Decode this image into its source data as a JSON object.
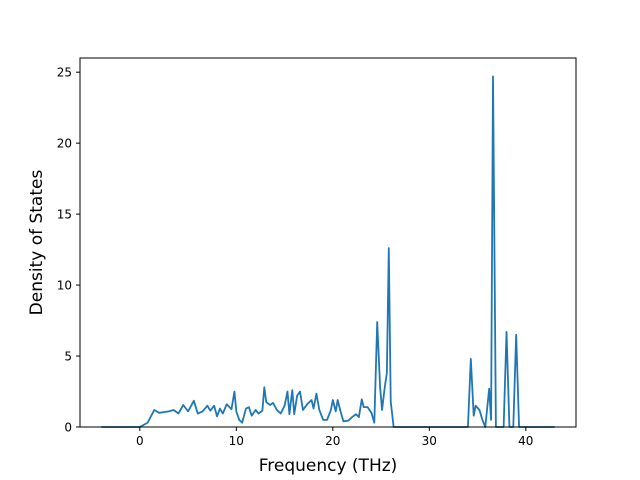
{
  "chart_data": {
    "type": "line",
    "title": "",
    "xlabel": "Frequency (THz)",
    "ylabel": "Density of States",
    "xlim": [
      -6.2,
      45.2
    ],
    "ylim": [
      0,
      26
    ],
    "xticks": [
      0,
      10,
      20,
      30,
      40
    ],
    "yticks": [
      0,
      5,
      10,
      15,
      20,
      25
    ],
    "grid": false,
    "legend": "none",
    "series": [
      {
        "color": "#1f77b4",
        "points": [
          [
            -4.0,
            0
          ],
          [
            0.0,
            0
          ],
          [
            0.8,
            0.3
          ],
          [
            1.5,
            1.2
          ],
          [
            2.0,
            1.0
          ],
          [
            2.5,
            1.05
          ],
          [
            3.0,
            1.1
          ],
          [
            3.5,
            1.2
          ],
          [
            4.0,
            0.95
          ],
          [
            4.5,
            1.55
          ],
          [
            5.0,
            1.1
          ],
          [
            5.6,
            1.85
          ],
          [
            6.0,
            0.95
          ],
          [
            6.5,
            1.1
          ],
          [
            7.0,
            1.5
          ],
          [
            7.3,
            1.15
          ],
          [
            7.7,
            1.5
          ],
          [
            8.0,
            0.75
          ],
          [
            8.3,
            1.3
          ],
          [
            8.6,
            0.95
          ],
          [
            9.0,
            1.6
          ],
          [
            9.5,
            1.25
          ],
          [
            9.8,
            2.5
          ],
          [
            10.0,
            1.1
          ],
          [
            10.3,
            0.5
          ],
          [
            10.6,
            0.3
          ],
          [
            11.0,
            1.3
          ],
          [
            11.3,
            1.4
          ],
          [
            11.6,
            0.8
          ],
          [
            12.0,
            1.2
          ],
          [
            12.3,
            0.95
          ],
          [
            12.7,
            1.15
          ],
          [
            12.9,
            2.8
          ],
          [
            13.1,
            1.75
          ],
          [
            13.5,
            1.55
          ],
          [
            13.8,
            1.7
          ],
          [
            14.2,
            1.2
          ],
          [
            14.6,
            0.95
          ],
          [
            15.0,
            1.5
          ],
          [
            15.3,
            2.5
          ],
          [
            15.5,
            0.9
          ],
          [
            15.8,
            2.6
          ],
          [
            16.0,
            0.9
          ],
          [
            16.3,
            2.2
          ],
          [
            16.6,
            2.5
          ],
          [
            16.9,
            1.2
          ],
          [
            17.4,
            1.65
          ],
          [
            17.8,
            1.9
          ],
          [
            18.0,
            1.3
          ],
          [
            18.3,
            2.35
          ],
          [
            18.6,
            1.2
          ],
          [
            19.0,
            0.5
          ],
          [
            19.4,
            0.5
          ],
          [
            19.8,
            1.2
          ],
          [
            20.0,
            1.9
          ],
          [
            20.3,
            1.1
          ],
          [
            20.5,
            1.9
          ],
          [
            20.8,
            1.1
          ],
          [
            21.1,
            0.4
          ],
          [
            21.6,
            0.45
          ],
          [
            22.0,
            0.7
          ],
          [
            22.4,
            0.9
          ],
          [
            22.7,
            0.7
          ],
          [
            23.0,
            1.95
          ],
          [
            23.2,
            1.4
          ],
          [
            23.6,
            1.4
          ],
          [
            24.0,
            1.0
          ],
          [
            24.3,
            0.3
          ],
          [
            24.6,
            7.4
          ],
          [
            24.9,
            2.8
          ],
          [
            25.1,
            1.2
          ],
          [
            25.4,
            2.9
          ],
          [
            25.6,
            3.8
          ],
          [
            25.8,
            12.6
          ],
          [
            26.0,
            1.8
          ],
          [
            26.3,
            0
          ],
          [
            34.0,
            0
          ],
          [
            34.3,
            4.8
          ],
          [
            34.6,
            0.8
          ],
          [
            34.8,
            1.5
          ],
          [
            35.2,
            1.2
          ],
          [
            35.5,
            0.5
          ],
          [
            35.8,
            0
          ],
          [
            36.2,
            2.7
          ],
          [
            36.4,
            0.5
          ],
          [
            36.6,
            24.7
          ],
          [
            36.9,
            0
          ],
          [
            37.7,
            0
          ],
          [
            38.0,
            6.7
          ],
          [
            38.3,
            0
          ],
          [
            38.7,
            0
          ],
          [
            39.0,
            6.5
          ],
          [
            39.3,
            0
          ],
          [
            43.0,
            0
          ]
        ]
      }
    ]
  }
}
